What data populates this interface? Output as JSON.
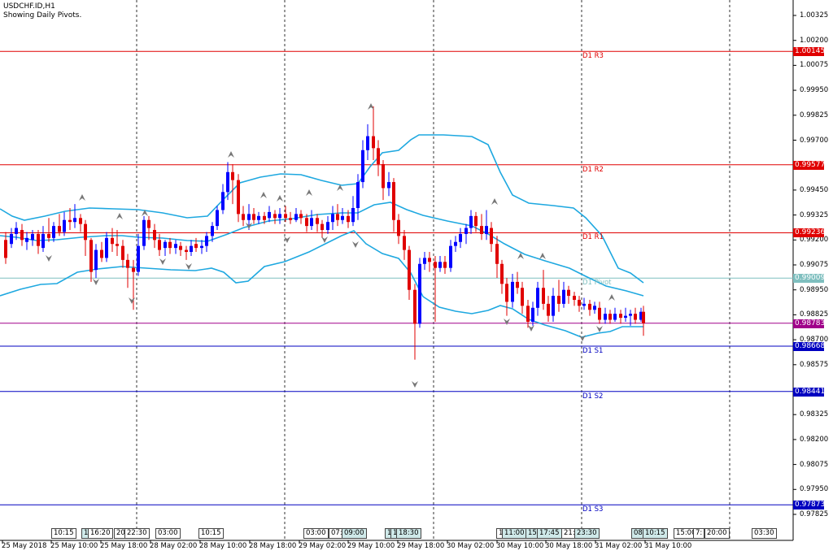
{
  "header": {
    "symbol": "USDCHF.ID,H1",
    "subtitle": "Showing Daily Pivots."
  },
  "y_axis_labels": [
    "1.00325",
    "1.00200",
    "1.00075",
    "0.99950",
    "0.99825",
    "0.99700",
    "0.99450",
    "0.99325",
    "0.99200",
    "0.99075",
    "0.98950",
    "0.98825",
    "0.98700",
    "0.98575",
    "0.98325",
    "0.98200",
    "0.98075",
    "0.97950",
    "0.97825"
  ],
  "x_axis_labels": [
    "25 May 2018",
    "25 May 10:00",
    "25 May 18:00",
    "28 May 02:00",
    "28 May 10:00",
    "28 May 18:00",
    "29 May 02:00",
    "29 May 10:00",
    "29 May 18:00",
    "30 May 02:00",
    "30 May 10:00",
    "30 May 18:00",
    "31 May 02:00",
    "31 May 10:00"
  ],
  "pivots": [
    {
      "name": "D1 R3",
      "price": "1.00145",
      "color": "#e00000"
    },
    {
      "name": "D1 R2",
      "price": "0.99577",
      "color": "#e00000"
    },
    {
      "name": "D1 R1",
      "price": "0.99236",
      "color": "#e00000"
    },
    {
      "name": "D1 Pivot",
      "price": "0.99009",
      "color": "#7fbfbf"
    },
    {
      "name": "D1 S1",
      "price": "0.98668",
      "color": "#0000c0"
    },
    {
      "name": "D1 S2",
      "price": "0.98441",
      "color": "#0000c0"
    },
    {
      "name": "D1 S3",
      "price": "0.97873",
      "color": "#0000c0"
    }
  ],
  "current_price": {
    "value": "0.98783",
    "color": "#a0008a"
  },
  "time_boxes": [
    "10:15",
    "1",
    "16:20",
    "20:",
    "22:30",
    "03:00",
    "10:15",
    "03:00",
    "07:",
    "09:00",
    "1",
    "1",
    "18:30",
    "1",
    "11:00",
    "15:",
    "17:45",
    "21:",
    "23:30",
    "08:",
    "10:15",
    "15:00",
    "7:",
    "20:00",
    "03:30"
  ],
  "colors": {
    "bull": "#0000ff",
    "bear": "#e00000",
    "bands": "#1ea8e0",
    "grid": "#000000"
  }
}
